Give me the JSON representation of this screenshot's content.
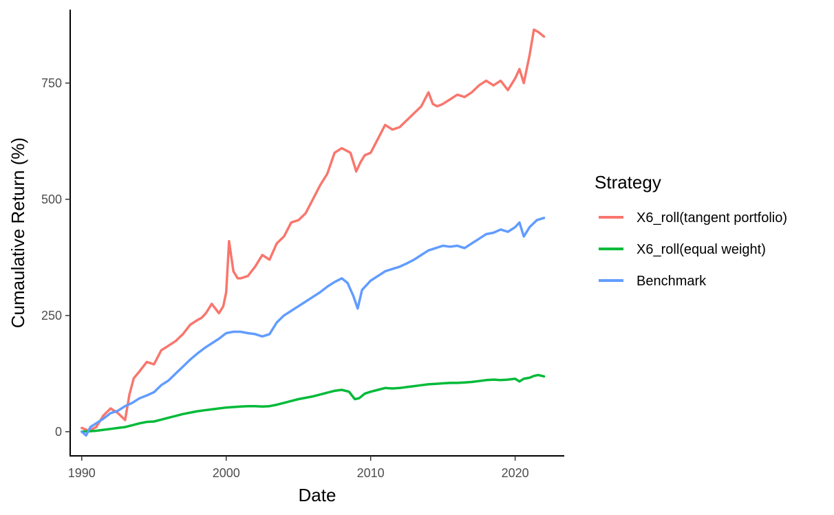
{
  "chart_data": {
    "type": "line",
    "xlabel": "Date",
    "ylabel": "Cumaulative Return (%)",
    "xlim": [
      1989.2,
      2023.4
    ],
    "ylim": [
      -52,
      908
    ],
    "x_ticks": [
      1990,
      2000,
      2010,
      2020
    ],
    "x_tick_labels": [
      "1990",
      "2000",
      "2010",
      "2020"
    ],
    "y_ticks": [
      0,
      250,
      500,
      750
    ],
    "y_tick_labels": [
      "0",
      "250",
      "500",
      "750"
    ],
    "grid": false,
    "legend": {
      "title": "Strategy",
      "position": "right"
    },
    "series": [
      {
        "name": "X6_roll(tangent portfolio)",
        "color": "#F8766D",
        "x": [
          1990.0,
          1990.5,
          1991.0,
          1991.5,
          1992.0,
          1992.5,
          1993.0,
          1993.3,
          1993.6,
          1994.0,
          1994.5,
          1995.0,
          1995.5,
          1996.0,
          1996.5,
          1997.0,
          1997.5,
          1998.0,
          1998.3,
          1998.6,
          1999.0,
          1999.5,
          1999.8,
          2000.0,
          2000.2,
          2000.5,
          2000.8,
          2001.0,
          2001.5,
          2002.0,
          2002.5,
          2003.0,
          2003.5,
          2004.0,
          2004.5,
          2005.0,
          2005.5,
          2006.0,
          2006.5,
          2007.0,
          2007.5,
          2008.0,
          2008.3,
          2008.6,
          2009.0,
          2009.3,
          2009.6,
          2010.0,
          2010.5,
          2011.0,
          2011.5,
          2012.0,
          2012.5,
          2013.0,
          2013.5,
          2014.0,
          2014.3,
          2014.6,
          2015.0,
          2015.5,
          2016.0,
          2016.5,
          2017.0,
          2017.5,
          2018.0,
          2018.5,
          2019.0,
          2019.5,
          2020.0,
          2020.3,
          2020.6,
          2021.0,
          2021.3,
          2021.6,
          2022.0
        ],
        "values": [
          8,
          2,
          10,
          35,
          50,
          40,
          25,
          80,
          115,
          130,
          150,
          145,
          175,
          185,
          195,
          210,
          230,
          240,
          245,
          255,
          275,
          255,
          270,
          300,
          410,
          345,
          330,
          330,
          335,
          355,
          380,
          370,
          405,
          420,
          450,
          455,
          470,
          500,
          530,
          555,
          600,
          610,
          605,
          600,
          560,
          580,
          595,
          600,
          630,
          660,
          650,
          655,
          670,
          685,
          700,
          730,
          705,
          700,
          705,
          715,
          725,
          720,
          730,
          745,
          755,
          745,
          755,
          735,
          760,
          780,
          750,
          810,
          865,
          860,
          850
        ]
      },
      {
        "name": "X6_roll(equal weight)",
        "color": "#00BA38",
        "x": [
          1990.0,
          1990.5,
          1991.0,
          1991.5,
          1992.0,
          1992.5,
          1993.0,
          1993.5,
          1994.0,
          1994.5,
          1995.0,
          1995.5,
          1996.0,
          1996.5,
          1997.0,
          1997.5,
          1998.0,
          1998.5,
          1999.0,
          1999.5,
          2000.0,
          2000.5,
          2001.0,
          2001.5,
          2002.0,
          2002.5,
          2003.0,
          2003.5,
          2004.0,
          2004.5,
          2005.0,
          2005.5,
          2006.0,
          2006.5,
          2007.0,
          2007.5,
          2008.0,
          2008.5,
          2008.9,
          2009.2,
          2009.6,
          2010.0,
          2010.5,
          2011.0,
          2011.5,
          2012.0,
          2012.5,
          2013.0,
          2013.5,
          2014.0,
          2014.5,
          2015.0,
          2015.5,
          2016.0,
          2016.5,
          2017.0,
          2017.5,
          2018.0,
          2018.5,
          2019.0,
          2019.5,
          2020.0,
          2020.3,
          2020.6,
          2021.0,
          2021.3,
          2021.6,
          2022.0
        ],
        "values": [
          0,
          1,
          2,
          4,
          6,
          8,
          10,
          14,
          18,
          21,
          22,
          26,
          30,
          34,
          38,
          41,
          44,
          46,
          48,
          50,
          52,
          53,
          54,
          55,
          55,
          54,
          55,
          58,
          62,
          66,
          70,
          73,
          76,
          80,
          84,
          88,
          90,
          86,
          70,
          72,
          82,
          86,
          90,
          94,
          93,
          94,
          96,
          98,
          100,
          102,
          103,
          104,
          105,
          105,
          106,
          107,
          109,
          111,
          112,
          111,
          112,
          114,
          108,
          114,
          116,
          120,
          122,
          119
        ]
      },
      {
        "name": "Benchmark",
        "color": "#619CFF",
        "x": [
          1990.0,
          1990.3,
          1990.6,
          1991.0,
          1991.5,
          1992.0,
          1992.5,
          1993.0,
          1993.5,
          1994.0,
          1994.5,
          1995.0,
          1995.5,
          1996.0,
          1996.5,
          1997.0,
          1997.5,
          1998.0,
          1998.5,
          1999.0,
          1999.5,
          2000.0,
          2000.5,
          2001.0,
          2001.5,
          2002.0,
          2002.5,
          2003.0,
          2003.5,
          2004.0,
          2004.5,
          2005.0,
          2005.5,
          2006.0,
          2006.5,
          2007.0,
          2007.5,
          2008.0,
          2008.4,
          2008.8,
          2009.1,
          2009.4,
          2009.7,
          2010.0,
          2010.5,
          2011.0,
          2011.5,
          2012.0,
          2012.5,
          2013.0,
          2013.5,
          2014.0,
          2014.5,
          2015.0,
          2015.5,
          2016.0,
          2016.5,
          2017.0,
          2017.5,
          2018.0,
          2018.5,
          2019.0,
          2019.5,
          2020.0,
          2020.3,
          2020.6,
          2021.0,
          2021.5,
          2022.0
        ],
        "values": [
          0,
          -8,
          10,
          18,
          28,
          40,
          45,
          55,
          62,
          72,
          78,
          85,
          100,
          110,
          125,
          140,
          155,
          168,
          180,
          190,
          200,
          212,
          215,
          215,
          212,
          210,
          205,
          210,
          235,
          250,
          260,
          270,
          280,
          290,
          300,
          312,
          322,
          330,
          320,
          292,
          265,
          305,
          315,
          325,
          335,
          345,
          350,
          355,
          362,
          370,
          380,
          390,
          395,
          400,
          398,
          400,
          395,
          405,
          415,
          425,
          428,
          435,
          430,
          440,
          450,
          420,
          440,
          455,
          460
        ]
      }
    ]
  }
}
